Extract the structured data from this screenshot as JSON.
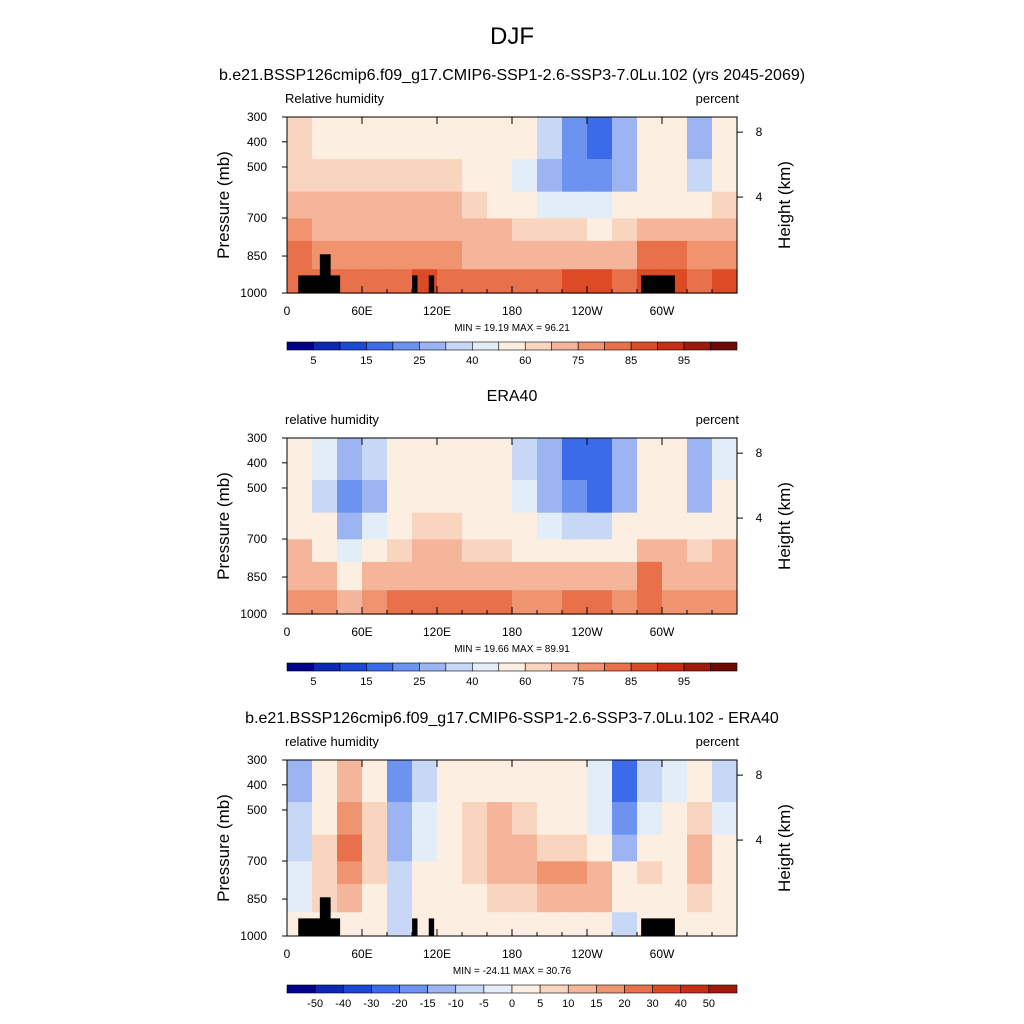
{
  "figure": {
    "title": "DJF"
  },
  "chart_data": [
    {
      "type": "heatmap",
      "title": "b.e21.BSSP126cmip6.f09_g17.CMIP6-SSP1-2.6-SSP3-7.0Lu.102 (yrs 2045-2069)",
      "left_label": "Relative humidity",
      "right_label": "percent",
      "ylabel": "Pressure (mb)",
      "ylabel_right": "Height (km)",
      "xticks": [
        "0",
        "60E",
        "120E",
        "180",
        "120W",
        "60W"
      ],
      "yticks": [
        "300",
        "400",
        "500",
        "700",
        "850",
        "1000"
      ],
      "yticks_right": [
        "8",
        "4"
      ],
      "stats": "MIN =  19.19  MAX =  96.21",
      "colorbar": {
        "labels": [
          "5",
          "15",
          "25",
          "40",
          "60",
          "75",
          "85",
          "95"
        ],
        "colors": [
          "#00008c",
          "#0c28b5",
          "#1c48d6",
          "#3b6be8",
          "#6c93f0",
          "#9cb5f2",
          "#c6d8f6",
          "#e2edf8",
          "#fcefe2",
          "#f9d5c0",
          "#f5b59b",
          "#f0936f",
          "#e8704a",
          "#dc4a26",
          "#c82e16",
          "#a01a0c",
          "#6e0a06"
        ]
      },
      "field": [
        [
          65,
          58,
          55,
          60,
          62,
          62,
          64,
          62,
          62,
          55,
          48,
          30,
          22,
          35,
          55,
          60,
          40,
          60
        ],
        [
          68,
          66,
          66,
          68,
          66,
          66,
          66,
          62,
          58,
          50,
          42,
          32,
          30,
          40,
          55,
          60,
          48,
          62
        ],
        [
          75,
          70,
          70,
          72,
          70,
          70,
          70,
          66,
          62,
          56,
          54,
          52,
          50,
          58,
          62,
          64,
          60,
          66
        ],
        [
          80,
          78,
          76,
          78,
          75,
          76,
          75,
          72,
          70,
          68,
          68,
          66,
          64,
          66,
          78,
          76,
          72,
          74
        ],
        [
          84,
          82,
          80,
          82,
          82,
          82,
          80,
          78,
          76,
          75,
          74,
          74,
          76,
          78,
          85,
          84,
          80,
          82
        ],
        [
          87,
          86,
          85,
          86,
          86,
          88,
          86,
          86,
          85,
          84,
          85,
          88,
          90,
          86,
          88,
          88,
          86,
          88
        ],
        [
          86,
          86,
          84,
          84,
          84,
          86,
          87,
          86,
          86,
          84,
          88,
          90,
          90,
          86,
          86,
          87,
          86,
          86
        ]
      ]
    },
    {
      "type": "heatmap",
      "title": "ERA40",
      "left_label": "relative humidity",
      "right_label": "percent",
      "ylabel": "Pressure (mb)",
      "ylabel_right": "Height (km)",
      "xticks": [
        "0",
        "60E",
        "120E",
        "180",
        "120W",
        "60W"
      ],
      "yticks": [
        "300",
        "400",
        "500",
        "700",
        "850",
        "1000"
      ],
      "yticks_right": [
        "8",
        "4"
      ],
      "stats": "MIN =  19.66  MAX =  89.91",
      "colorbar": {
        "labels": [
          "5",
          "15",
          "25",
          "40",
          "60",
          "75",
          "85",
          "95"
        ],
        "colors": [
          "#00008c",
          "#0c28b5",
          "#1c48d6",
          "#3b6be8",
          "#6c93f0",
          "#9cb5f2",
          "#c6d8f6",
          "#e2edf8",
          "#fcefe2",
          "#f9d5c0",
          "#f5b59b",
          "#f0936f",
          "#e8704a",
          "#dc4a26",
          "#c82e16",
          "#a01a0c",
          "#6e0a06"
        ]
      },
      "field": [
        [
          55,
          50,
          38,
          48,
          55,
          62,
          62,
          60,
          58,
          48,
          40,
          28,
          25,
          40,
          55,
          58,
          40,
          52
        ],
        [
          55,
          45,
          30,
          42,
          55,
          64,
          64,
          62,
          58,
          50,
          42,
          30,
          28,
          42,
          55,
          58,
          42,
          55
        ],
        [
          62,
          55,
          42,
          52,
          60,
          66,
          66,
          64,
          60,
          55,
          52,
          48,
          46,
          55,
          60,
          62,
          58,
          62
        ],
        [
          70,
          62,
          50,
          60,
          66,
          70,
          72,
          68,
          66,
          64,
          62,
          62,
          60,
          64,
          75,
          70,
          66,
          70
        ],
        [
          78,
          72,
          62,
          72,
          76,
          78,
          78,
          76,
          74,
          72,
          72,
          72,
          72,
          76,
          84,
          78,
          74,
          76
        ],
        [
          82,
          80,
          75,
          82,
          84,
          86,
          86,
          84,
          84,
          82,
          82,
          84,
          84,
          82,
          85,
          82,
          80,
          82
        ],
        [
          84,
          82,
          78,
          84,
          86,
          88,
          87,
          86,
          85,
          84,
          84,
          86,
          86,
          84,
          84,
          84,
          82,
          84
        ]
      ]
    },
    {
      "type": "heatmap",
      "title": "b.e21.BSSP126cmip6.f09_g17.CMIP6-SSP1-2.6-SSP3-7.0Lu.102 - ERA40",
      "left_label": "relative humidity",
      "right_label": "percent",
      "ylabel": "Pressure (mb)",
      "ylabel_right": "Height (km)",
      "xticks": [
        "0",
        "60E",
        "120E",
        "180",
        "120W",
        "60W"
      ],
      "yticks": [
        "300",
        "400",
        "500",
        "700",
        "850",
        "1000"
      ],
      "yticks_right": [
        "8",
        "4"
      ],
      "stats": "MIN = -24.11  MAX =  30.76",
      "colorbar": {
        "labels": [
          "-50",
          "-40",
          "-30",
          "-20",
          "-15",
          "-10",
          "-5",
          "0",
          "5",
          "10",
          "15",
          "20",
          "30",
          "40",
          "50"
        ],
        "colors": [
          "#00008c",
          "#0c28b5",
          "#1c48d6",
          "#3b6be8",
          "#6c93f0",
          "#9cb5f2",
          "#c6d8f6",
          "#e2edf8",
          "#fcefe2",
          "#f9d5c0",
          "#f5b59b",
          "#f0936f",
          "#e8704a",
          "#dc4a26",
          "#c82e16",
          "#a01a0c"
        ]
      },
      "field": [
        [
          -8,
          2,
          14,
          6,
          -14,
          -4,
          2,
          4,
          2,
          2,
          2,
          2,
          -2,
          -18,
          -6,
          0,
          2,
          -4
        ],
        [
          -6,
          6,
          24,
          10,
          -12,
          -2,
          4,
          8,
          12,
          8,
          4,
          2,
          -2,
          -14,
          -2,
          2,
          10,
          -2
        ],
        [
          -4,
          8,
          26,
          10,
          -8,
          0,
          6,
          10,
          16,
          12,
          10,
          8,
          4,
          -8,
          4,
          4,
          14,
          2
        ],
        [
          -2,
          10,
          22,
          8,
          -4,
          2,
          6,
          8,
          12,
          14,
          18,
          22,
          16,
          2,
          8,
          6,
          16,
          4
        ],
        [
          0,
          8,
          14,
          4,
          -6,
          2,
          4,
          6,
          8,
          10,
          12,
          14,
          12,
          4,
          4,
          6,
          8,
          2
        ],
        [
          2,
          4,
          6,
          2,
          -4,
          2,
          2,
          4,
          4,
          4,
          6,
          6,
          4,
          -4,
          2,
          4,
          4,
          2
        ],
        [
          0,
          2,
          4,
          0,
          -2,
          0,
          2,
          2,
          2,
          2,
          2,
          2,
          2,
          -2,
          2,
          2,
          2,
          0
        ]
      ]
    }
  ]
}
